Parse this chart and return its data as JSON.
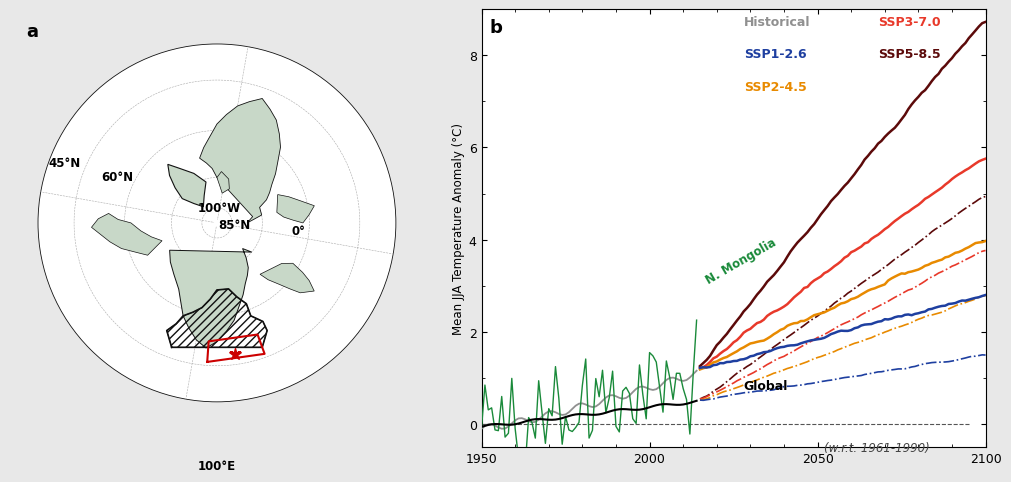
{
  "panel_a_label": "a",
  "panel_b_label": "b",
  "map_lat_labels": [
    "45°N",
    "60°N",
    "85°N"
  ],
  "map_lon_label_top": "100°W",
  "map_lon_label_bottom": "100°E",
  "map_lon_label_left": "0°",
  "legend_labels": [
    "Historical",
    "SSP3-7.0",
    "SSP1-2.6",
    "SSP5-8.5",
    "SSP2-4.5"
  ],
  "ylabel": "Mean JJA Temperature Anomaly (°C)",
  "wrt_label": "(w.r.t. 1961-1990)",
  "n_mongolia_label": "N. Mongolia",
  "global_label": "Global",
  "n_mongolia_color": "#1a8a3a",
  "global_color": "#000000",
  "historical_color": "#909090",
  "ssp126_color": "#1e3fa0",
  "ssp245_color": "#e88a00",
  "ssp370_color": "#e8392a",
  "ssp585_color": "#5c0a0a",
  "xlim": [
    1950,
    2100
  ],
  "ylim": [
    -0.5,
    9.0
  ],
  "yticks": [
    0,
    2,
    4,
    6,
    8
  ],
  "xticks": [
    1950,
    2000,
    2050,
    2100
  ],
  "background_color": "#ffffff",
  "map_land_color": "#c8d8c8",
  "map_ocean_color": "#ffffff",
  "map_border_color": "#111111",
  "hatched_region_color": "#111111",
  "red_box_color": "#cc0000",
  "star_color": "#cc0000",
  "fig_bg_color": "#e8e8e8"
}
